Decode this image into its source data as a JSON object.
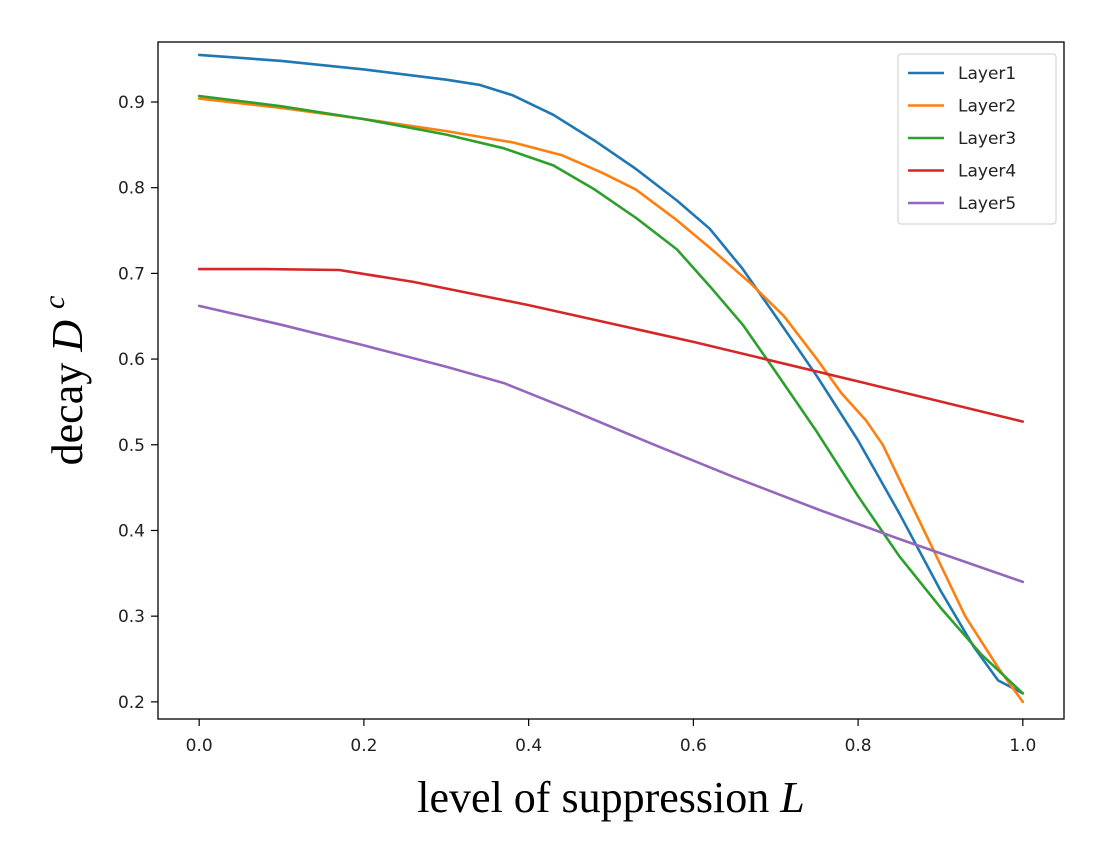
{
  "chart_data": {
    "type": "line",
    "title": "",
    "xlabel": "level of suppression",
    "xlabel_var": "L",
    "ylabel": "decay",
    "ylabel_var": "D",
    "ylabel_sup": "c",
    "xlim": [
      -0.05,
      1.05
    ],
    "ylim": [
      0.18,
      0.97
    ],
    "xticks": [
      0.0,
      0.2,
      0.4,
      0.6,
      0.8,
      1.0
    ],
    "xtick_labels": [
      "0.0",
      "0.2",
      "0.4",
      "0.6",
      "0.8",
      "1.0"
    ],
    "yticks": [
      0.2,
      0.3,
      0.4,
      0.5,
      0.6,
      0.7,
      0.8,
      0.9
    ],
    "ytick_labels": [
      "0.2",
      "0.3",
      "0.4",
      "0.5",
      "0.6",
      "0.7",
      "0.8",
      "0.9"
    ],
    "grid": false,
    "legend_position": "top-right",
    "series": [
      {
        "name": "Layer1",
        "color": "#1f77b4",
        "x": [
          0.0,
          0.1,
          0.2,
          0.3,
          0.34,
          0.38,
          0.43,
          0.48,
          0.53,
          0.58,
          0.62,
          0.66,
          0.7,
          0.75,
          0.8,
          0.85,
          0.9,
          0.94,
          0.97,
          1.0
        ],
        "y": [
          0.955,
          0.948,
          0.938,
          0.926,
          0.92,
          0.908,
          0.885,
          0.855,
          0.822,
          0.785,
          0.752,
          0.705,
          0.65,
          0.58,
          0.505,
          0.42,
          0.33,
          0.265,
          0.225,
          0.21
        ]
      },
      {
        "name": "Layer2",
        "color": "#ff7f0e",
        "x": [
          0.0,
          0.1,
          0.2,
          0.3,
          0.38,
          0.44,
          0.49,
          0.53,
          0.58,
          0.62,
          0.67,
          0.71,
          0.75,
          0.78,
          0.81,
          0.83,
          0.86,
          0.9,
          0.93,
          0.97,
          1.0
        ],
        "y": [
          0.904,
          0.893,
          0.88,
          0.866,
          0.853,
          0.838,
          0.817,
          0.798,
          0.762,
          0.73,
          0.688,
          0.65,
          0.6,
          0.56,
          0.528,
          0.5,
          0.44,
          0.36,
          0.3,
          0.24,
          0.2
        ]
      },
      {
        "name": "Layer3",
        "color": "#2ca02c",
        "x": [
          0.0,
          0.1,
          0.2,
          0.3,
          0.37,
          0.43,
          0.48,
          0.53,
          0.58,
          0.62,
          0.66,
          0.7,
          0.75,
          0.8,
          0.85,
          0.9,
          0.95,
          1.0
        ],
        "y": [
          0.907,
          0.895,
          0.88,
          0.862,
          0.846,
          0.826,
          0.798,
          0.765,
          0.728,
          0.685,
          0.64,
          0.585,
          0.515,
          0.44,
          0.37,
          0.31,
          0.255,
          0.21
        ]
      },
      {
        "name": "Layer4",
        "color": "#d62728",
        "x": [
          0.0,
          0.08,
          0.17,
          0.26,
          0.4,
          0.6,
          0.8,
          1.0
        ],
        "y": [
          0.705,
          0.705,
          0.704,
          0.69,
          0.663,
          0.62,
          0.574,
          0.527
        ]
      },
      {
        "name": "Layer5",
        "color": "#9467bd",
        "x": [
          0.0,
          0.1,
          0.2,
          0.3,
          0.37,
          0.45,
          0.55,
          0.65,
          0.75,
          0.85,
          1.0
        ],
        "y": [
          0.662,
          0.64,
          0.616,
          0.591,
          0.572,
          0.541,
          0.501,
          0.462,
          0.425,
          0.39,
          0.34
        ]
      }
    ]
  }
}
